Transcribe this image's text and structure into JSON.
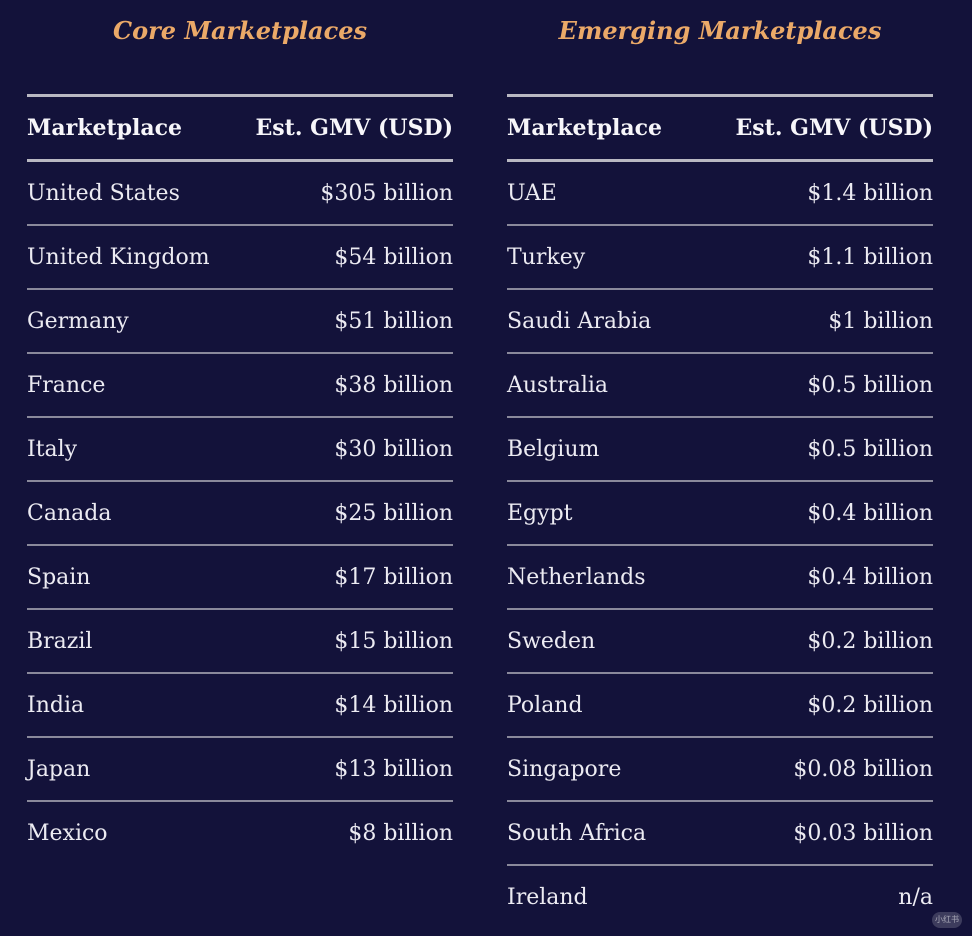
{
  "core": {
    "title": "Core Marketplaces",
    "header": {
      "name": "Marketplace",
      "value": "Est. GMV (USD)"
    },
    "rows": [
      {
        "name": "United States",
        "value": "$305 billion"
      },
      {
        "name": "United Kingdom",
        "value": "$54 billion"
      },
      {
        "name": "Germany",
        "value": "$51 billion"
      },
      {
        "name": "France",
        "value": "$38 billion"
      },
      {
        "name": "Italy",
        "value": "$30 billion"
      },
      {
        "name": "Canada",
        "value": "$25 billion"
      },
      {
        "name": "Spain",
        "value": "$17 billion"
      },
      {
        "name": "Brazil",
        "value": "$15 billion"
      },
      {
        "name": "India",
        "value": "$14 billion"
      },
      {
        "name": "Japan",
        "value": "$13 billion"
      },
      {
        "name": "Mexico",
        "value": "$8 billion"
      }
    ]
  },
  "emerging": {
    "title": "Emerging Marketplaces",
    "header": {
      "name": "Marketplace",
      "value": "Est. GMV (USD)"
    },
    "rows": [
      {
        "name": "UAE",
        "value": "$1.4 billion"
      },
      {
        "name": "Turkey",
        "value": "$1.1 billion"
      },
      {
        "name": "Saudi Arabia",
        "value": "$1 billion"
      },
      {
        "name": "Australia",
        "value": "$0.5 billion"
      },
      {
        "name": "Belgium",
        "value": "$0.5 billion"
      },
      {
        "name": "Egypt",
        "value": "$0.4 billion"
      },
      {
        "name": "Netherlands",
        "value": "$0.4 billion"
      },
      {
        "name": "Sweden",
        "value": "$0.2 billion"
      },
      {
        "name": "Poland",
        "value": "$0.2 billion"
      },
      {
        "name": "Singapore",
        "value": "$0.08 billion"
      },
      {
        "name": "South Africa",
        "value": "$0.03 billion"
      },
      {
        "name": "Ireland",
        "value": "n/a"
      }
    ]
  },
  "watermark": "小红书"
}
